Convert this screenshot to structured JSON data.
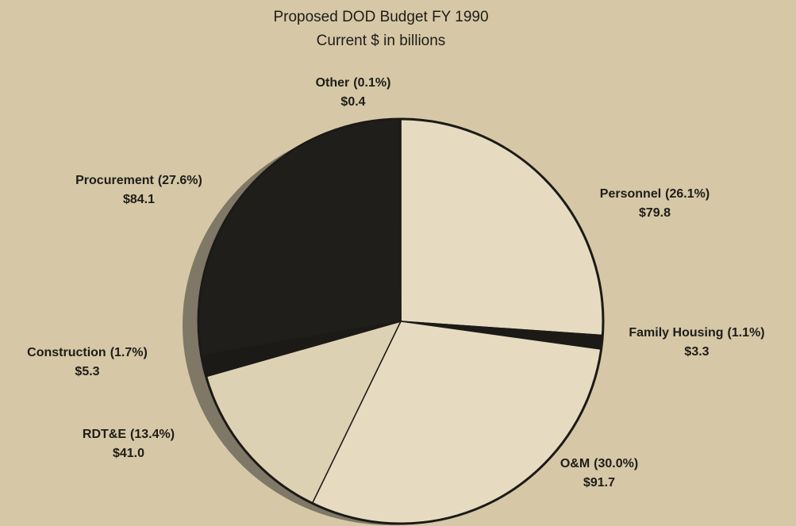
{
  "chart_data": {
    "type": "pie",
    "title": "Proposed DOD Budget FY 1990",
    "subtitle": "Current $ in billions",
    "categories": [
      "Personnel",
      "Family Housing",
      "O&M",
      "RDT&E",
      "Construction",
      "Procurement",
      "Other"
    ],
    "values": [
      26.1,
      1.1,
      30.0,
      13.4,
      1.7,
      27.6,
      0.1
    ],
    "value_labels": [
      "(26.1%)",
      "(1.1%)",
      "(30.0%)",
      "(13.4%)",
      "(1.7%)",
      "(27.6%)",
      "(0.1%)"
    ],
    "amounts": [
      79.8,
      3.3,
      91.7,
      41.0,
      5.3,
      84.1,
      0.4
    ],
    "amount_labels": [
      "$79.8",
      "$3.3",
      "$91.7",
      "$41.0",
      "$5.3",
      "$84.1",
      "$0.4"
    ],
    "colors": [
      "#e6dbc0",
      "#1c1a17",
      "#e6dbc0",
      "#ddd1b3",
      "#1c1a17",
      "#201e1b",
      "#201e1b"
    ]
  }
}
